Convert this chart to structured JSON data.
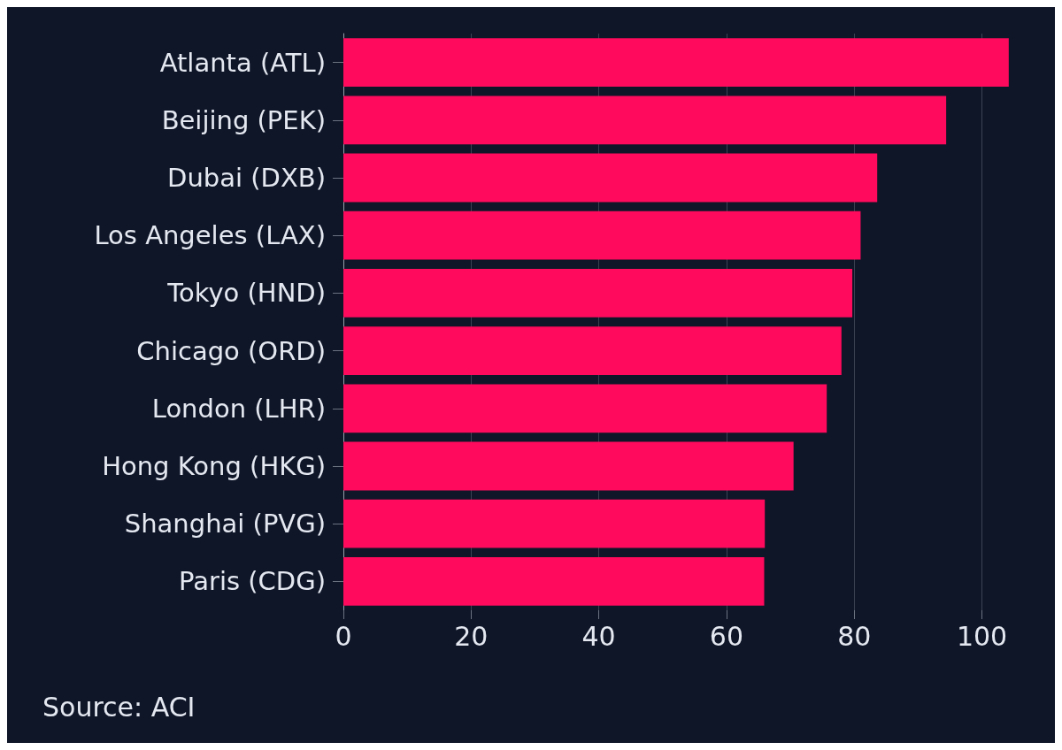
{
  "chart_data": {
    "type": "bar",
    "orientation": "horizontal",
    "categories": [
      "Atlanta (ATL)",
      "Beijing (PEK)",
      "Dubai (DXB)",
      "Los Angeles (LAX)",
      "Tokyo (HND)",
      "Chicago (ORD)",
      "London (LHR)",
      "Hong Kong (HKG)",
      "Shanghai (PVG)",
      "Paris (CDG)"
    ],
    "values": [
      104.2,
      94.4,
      83.6,
      81.0,
      79.7,
      78.0,
      75.7,
      70.5,
      66.0,
      65.9
    ],
    "color": "#ff0a5c",
    "xlim": [
      0,
      104.5
    ],
    "xticks": [
      0,
      20,
      40,
      60,
      80,
      100
    ],
    "grid": "x",
    "annotations": [
      "Source: ACI"
    ]
  }
}
